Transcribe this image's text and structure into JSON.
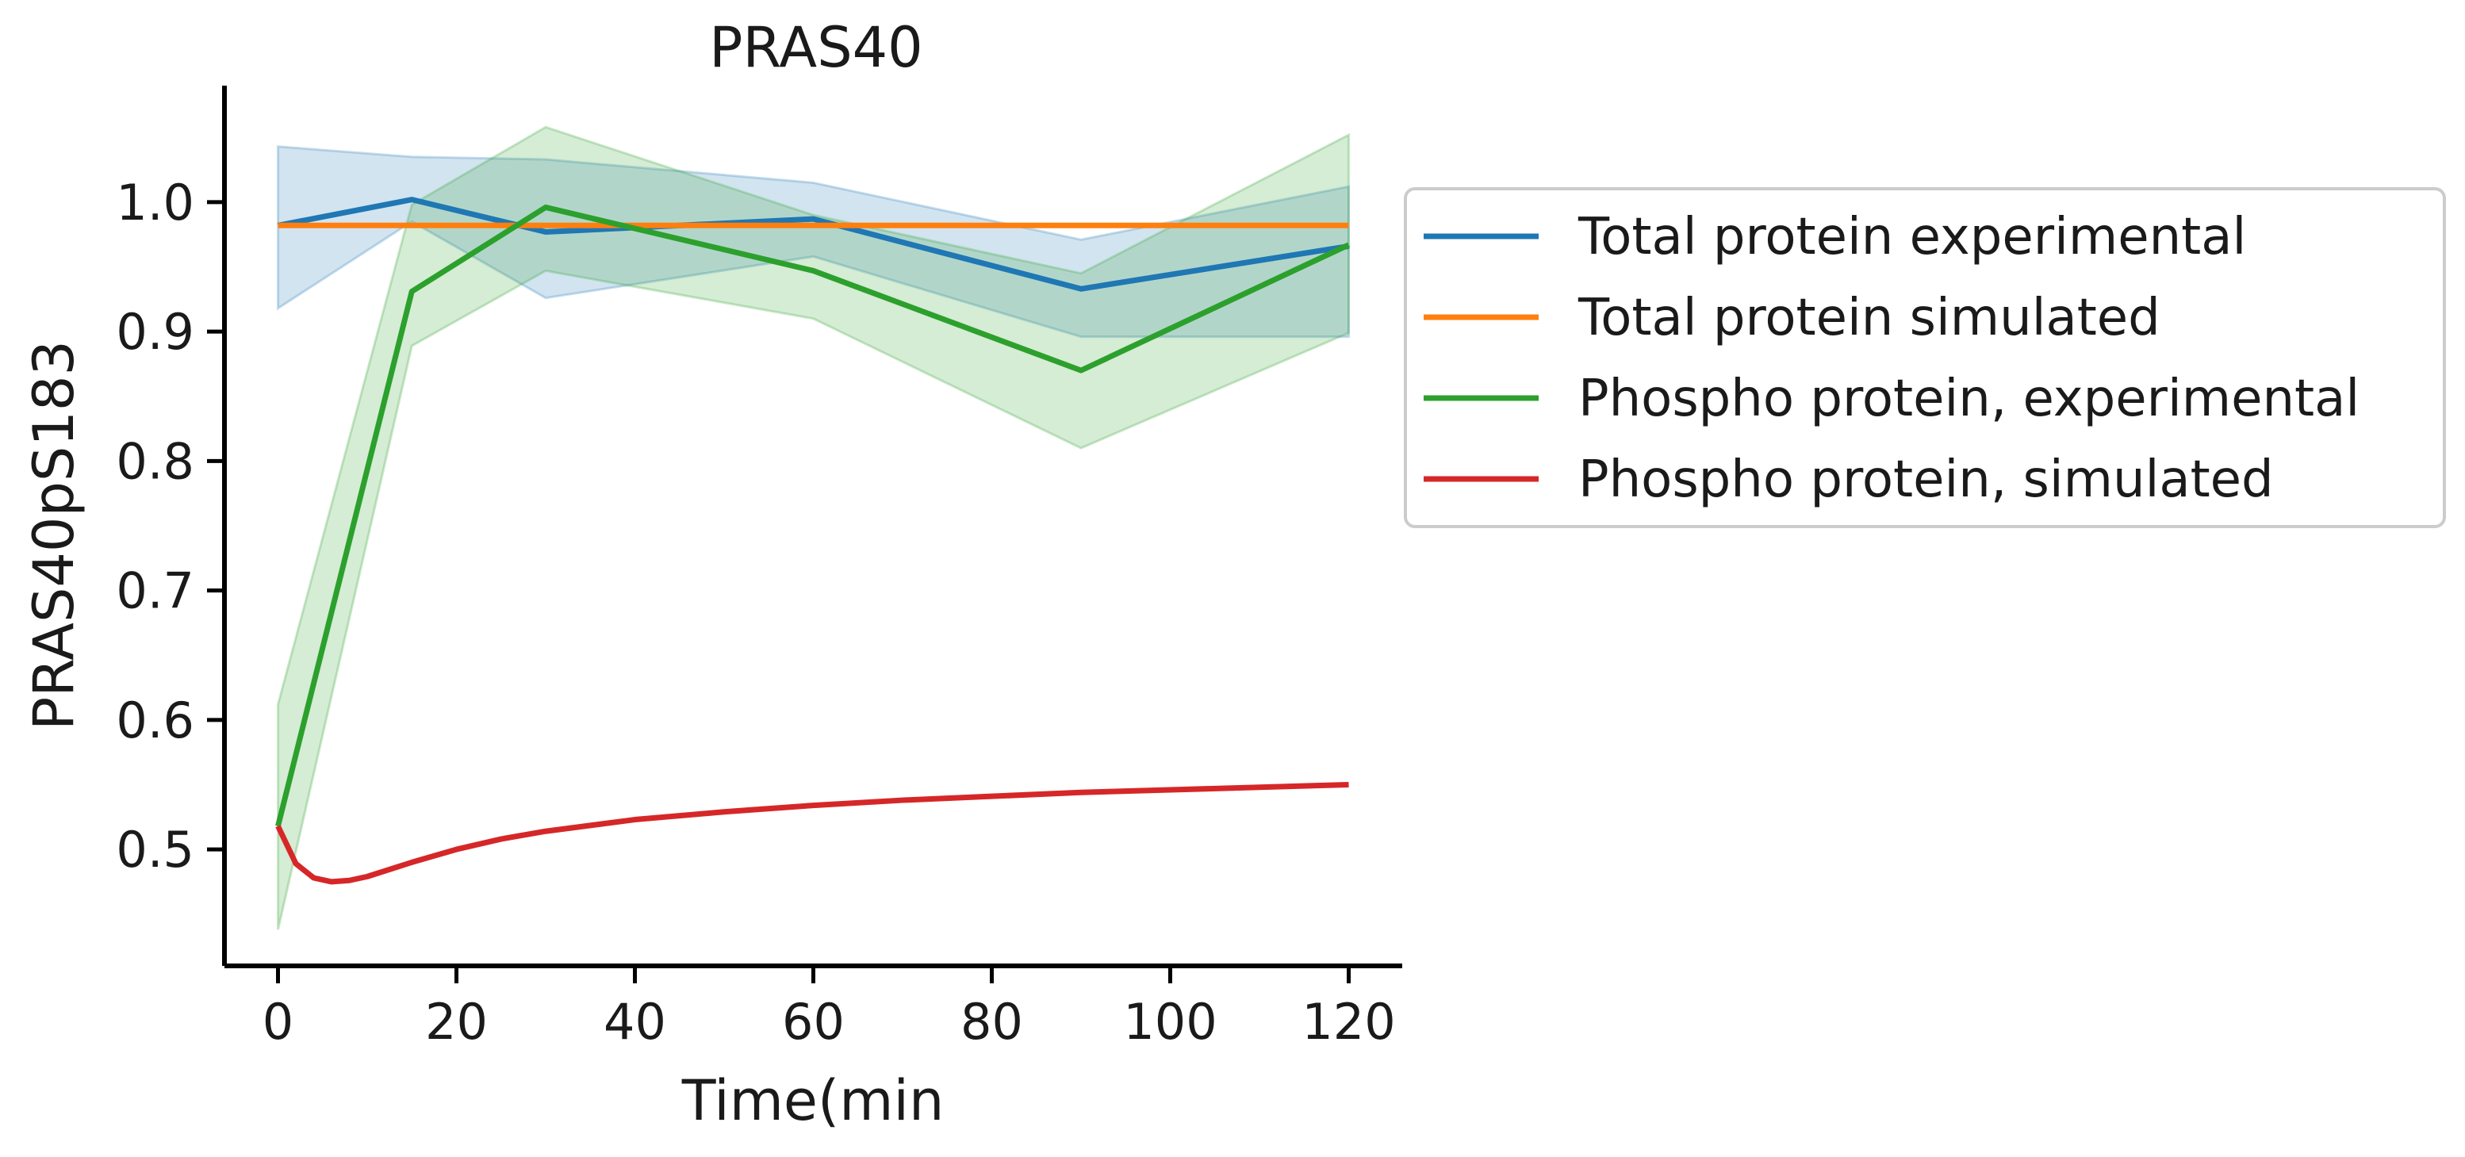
{
  "chart_data": {
    "type": "line",
    "title": "PRAS40",
    "xlabel": "Time(min",
    "ylabel": "PRAS40pS183",
    "xlim": [
      -6,
      126
    ],
    "ylim": [
      0.41,
      1.09
    ],
    "xticks": [
      0,
      20,
      40,
      60,
      80,
      100,
      120
    ],
    "xtick_labels": [
      "0",
      "20",
      "40",
      "60",
      "80",
      "100",
      "120"
    ],
    "yticks": [
      0.5,
      0.6,
      0.7,
      0.8,
      0.9,
      1.0
    ],
    "ytick_labels": [
      "0.5",
      "0.6",
      "0.7",
      "0.8",
      "0.9",
      "1.0"
    ],
    "grid": false,
    "legend_position": "outside right, top",
    "series": [
      {
        "name": "Total protein experimental",
        "color": "#1f77b4",
        "x": [
          0,
          15,
          30,
          60,
          90,
          120
        ],
        "y": [
          0.982,
          1.002,
          0.977,
          0.987,
          0.933,
          0.966
        ],
        "band_upper": [
          1.043,
          1.035,
          1.033,
          1.015,
          0.971,
          1.012
        ],
        "band_lower": [
          0.918,
          0.985,
          0.926,
          0.958,
          0.896,
          0.896
        ]
      },
      {
        "name": "Total protein simulated",
        "color": "#ff7f0e",
        "x": [
          0,
          120
        ],
        "y": [
          0.982,
          0.982
        ]
      },
      {
        "name": "Phospho protein, experimental",
        "color": "#2ca02c",
        "x": [
          0,
          15,
          30,
          60,
          90,
          120
        ],
        "y": [
          0.518,
          0.931,
          0.996,
          0.947,
          0.87,
          0.967
        ],
        "band_upper": [
          0.612,
          0.998,
          1.058,
          0.99,
          0.945,
          1.052
        ],
        "band_lower": [
          0.438,
          0.889,
          0.947,
          0.91,
          0.81,
          0.899
        ]
      },
      {
        "name": "Phospho protein, simulated",
        "color": "#d62728",
        "x": [
          0,
          2,
          4,
          6,
          8,
          10,
          15,
          20,
          25,
          30,
          40,
          50,
          60,
          70,
          80,
          90,
          100,
          110,
          120
        ],
        "y": [
          0.518,
          0.489,
          0.478,
          0.475,
          0.476,
          0.479,
          0.49,
          0.5,
          0.508,
          0.514,
          0.523,
          0.529,
          0.534,
          0.538,
          0.541,
          0.544,
          0.546,
          0.548,
          0.55
        ]
      }
    ]
  }
}
